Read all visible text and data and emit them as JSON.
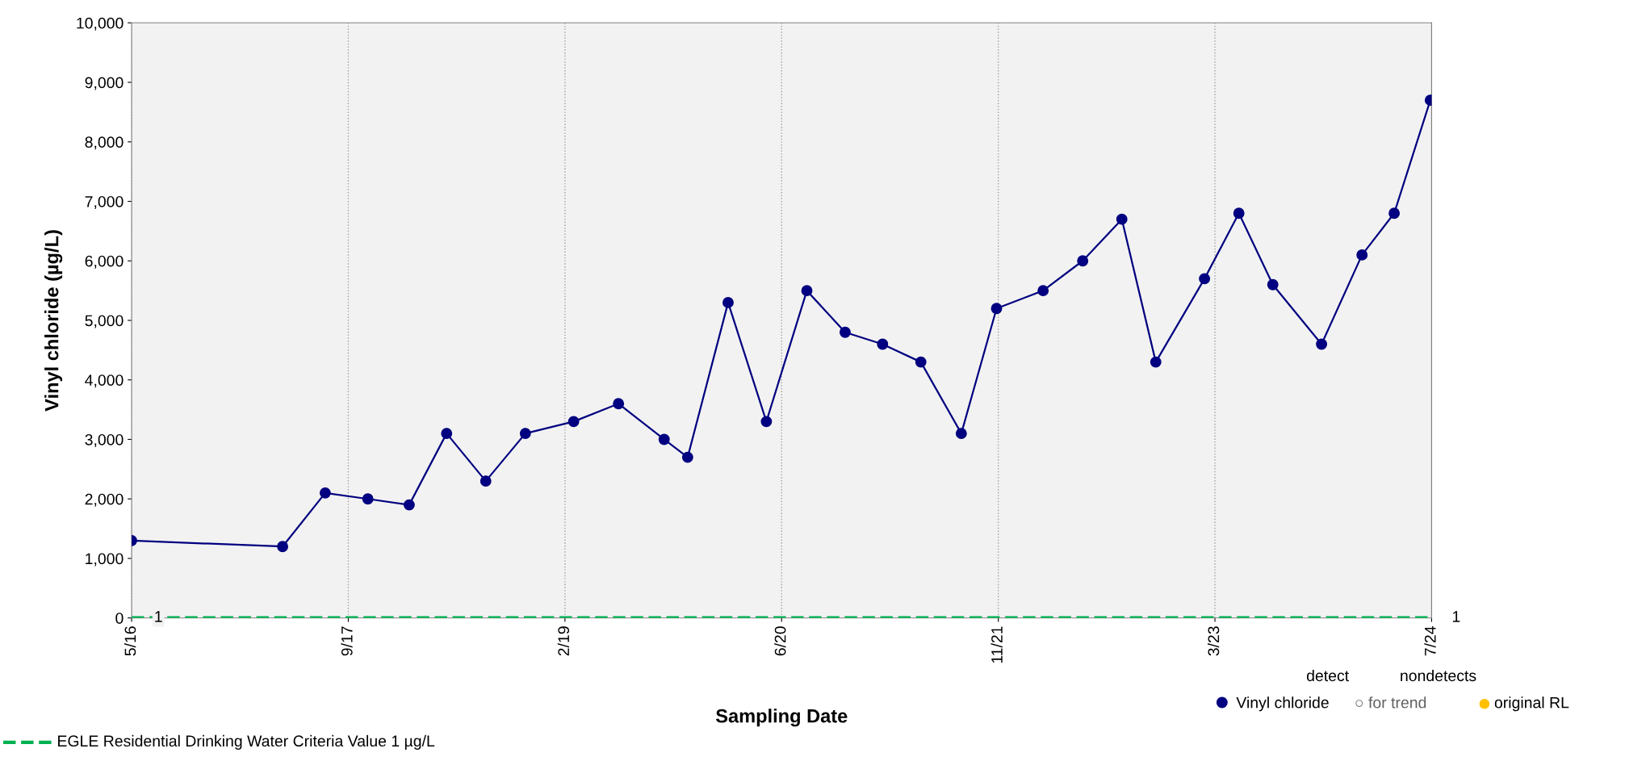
{
  "chart_data": {
    "type": "line",
    "xlabel": "Sampling Date",
    "ylabel": "Vinyl chloride (µg/L)",
    "x": [
      "2016-05-20",
      "2017-05-02",
      "2017-08-08",
      "2017-11-14",
      "2018-02-17",
      "2018-05-14",
      "2018-08-12",
      "2018-11-11",
      "2019-03-02",
      "2019-06-13",
      "2019-09-26",
      "2019-11-19",
      "2020-02-20",
      "2020-05-18",
      "2020-08-19",
      "2020-11-15",
      "2021-02-09",
      "2021-05-08",
      "2021-08-09",
      "2021-10-29",
      "2022-02-13",
      "2022-05-15",
      "2022-08-13",
      "2022-10-30",
      "2023-02-19",
      "2023-05-09",
      "2023-07-26",
      "2023-11-15",
      "2024-02-16",
      "2024-04-30",
      "2024-07-22"
    ],
    "series": [
      {
        "name": "Vinyl chloride",
        "color": "#000080",
        "values": [
          1300,
          1200,
          2100,
          2000,
          1900,
          3100,
          2300,
          3100,
          3300,
          3600,
          3000,
          2700,
          5300,
          3300,
          5500,
          4800,
          4600,
          4300,
          3100,
          5200,
          5500,
          6000,
          6700,
          4300,
          5700,
          6800,
          5600,
          4600,
          6100,
          6800,
          8700
        ]
      }
    ],
    "marker": "circle",
    "line_style": "solid",
    "xlim": [
      "2016-05-20",
      "2024-07-25"
    ],
    "xticks": [
      {
        "value": "2016-05-20",
        "label": "5/16"
      },
      {
        "value": "2017-09-30",
        "label": "9/17"
      },
      {
        "value": "2019-02-10",
        "label": "2/19"
      },
      {
        "value": "2020-06-22",
        "label": "6/20"
      },
      {
        "value": "2021-11-02",
        "label": "11/21"
      },
      {
        "value": "2023-03-15",
        "label": "3/23"
      },
      {
        "value": "2024-07-25",
        "label": "7/24"
      }
    ],
    "ylim": [
      0,
      10000
    ],
    "yticks": [
      0,
      {
        "value": 1000,
        "label": "1,000"
      },
      {
        "value": 2000,
        "label": "2,000"
      },
      {
        "value": 3000,
        "label": "3,000"
      },
      {
        "value": 4000,
        "label": "4,000"
      },
      {
        "value": 5000,
        "label": "5,000"
      },
      {
        "value": 6000,
        "label": "6,000"
      },
      {
        "value": 7000,
        "label": "7,000"
      },
      {
        "value": 8000,
        "label": "8,000"
      },
      {
        "value": 9000,
        "label": "9,000"
      },
      {
        "value": 10000,
        "label": "10,000"
      }
    ],
    "grid": "x",
    "legend": "bottom",
    "ref_lines": [
      {
        "axis": "y",
        "value": 1,
        "label": "EGLE Residential Drinking Water Criteria Value 1 µg/L",
        "color": "#00b050",
        "line_style": "dashed"
      }
    ],
    "annotations": [
      {
        "text": "1",
        "x": "2016-05-20",
        "y": 1
      },
      {
        "text": "1",
        "x": "2024-07-25",
        "y": 1
      },
      "detect",
      "nondetects",
      "○ for trend",
      "original RL"
    ]
  }
}
